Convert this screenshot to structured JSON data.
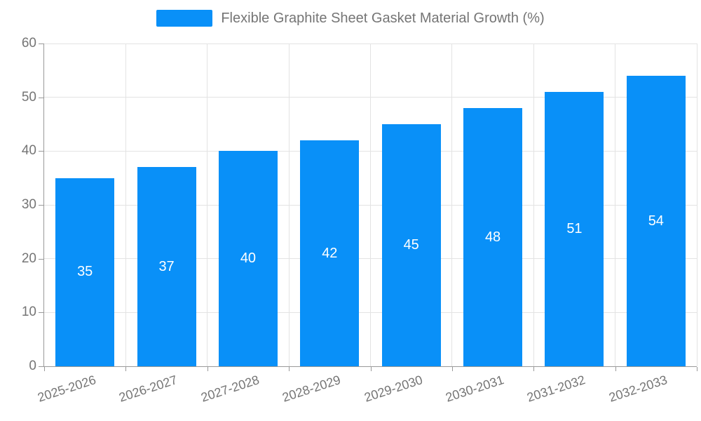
{
  "chart_data": {
    "type": "bar",
    "title": "Flexible Graphite Sheet Gasket Material Growth (%)",
    "categories": [
      "2025-2026",
      "2026-2027",
      "2027-2028",
      "2028-2029",
      "2029-2030",
      "2030-2031",
      "2031-2032",
      "2032-2033"
    ],
    "values": [
      35,
      37,
      40,
      42,
      45,
      48,
      51,
      54
    ],
    "xlabel": "",
    "ylabel": "",
    "ylim": [
      0,
      60
    ],
    "yticks": [
      0,
      10,
      20,
      30,
      40,
      50,
      60
    ],
    "grid": true,
    "legend_position": "top",
    "legend_entries": [
      "Flexible Graphite Sheet Gasket Material Growth (%)"
    ],
    "bar_label_position": "inside"
  },
  "colors": {
    "bar": "#0990f8",
    "bar_label": "#ffffff",
    "axis_line": "#999999",
    "gridline": "#e3e3e3",
    "text": "#757575"
  },
  "legend": {
    "label": "Flexible Graphite Sheet Gasket Material Growth (%)"
  }
}
